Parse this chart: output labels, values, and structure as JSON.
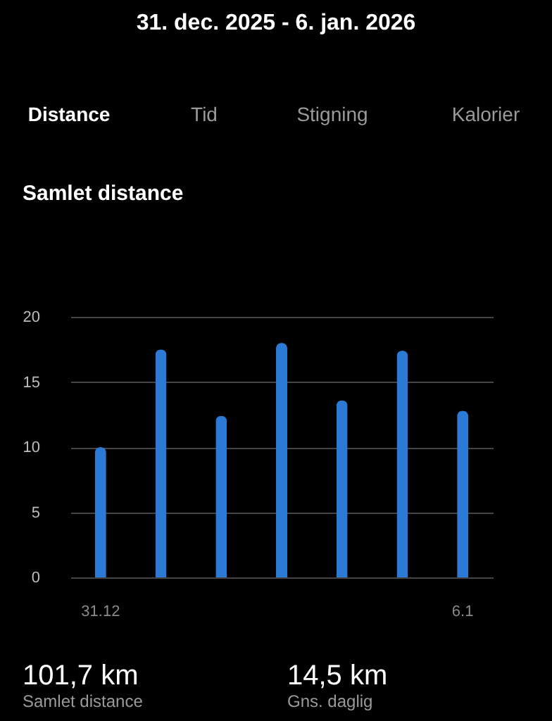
{
  "chart_data": {
    "type": "bar",
    "title": "31. dec. 2025 - 6. jan. 2026",
    "subtitle": "Samlet distance",
    "categories": [
      "31.12",
      null,
      null,
      null,
      null,
      null,
      "6.1"
    ],
    "values": [
      10.0,
      17.5,
      12.4,
      18.0,
      13.6,
      17.4,
      12.8
    ],
    "color": "#2a7ad6",
    "ylim": [
      0,
      20
    ],
    "yticks": [
      0,
      5,
      10,
      15,
      20
    ],
    "grid": "y",
    "annotations": [
      "Distance",
      "Tid",
      "Stigning",
      "Kalorier",
      "101,7 km",
      "Samlet distance",
      "14,5 km",
      "Gns. daglig"
    ]
  }
}
